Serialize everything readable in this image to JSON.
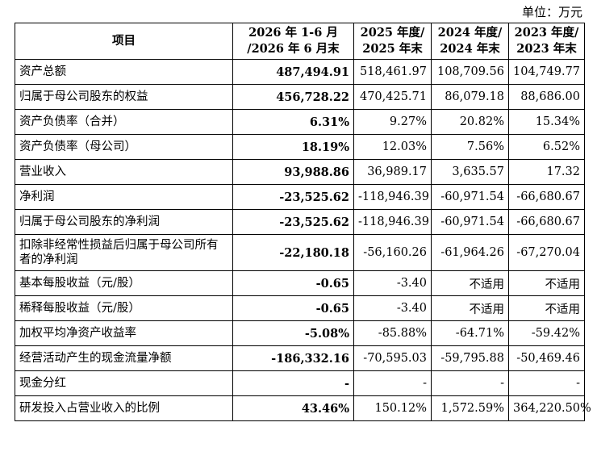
{
  "unit_label": "单位：万元",
  "headers": [
    "项目",
    "2026 年 1-6 月\n/2026 年 6 月末",
    "2025 年度/\n2025 年末",
    "2024 年度/\n2024 年末",
    "2023 年度/\n2023 年末"
  ],
  "rows": [
    {
      "label": "资产总额",
      "values": [
        "487,494.91",
        "518,461.97",
        "108,709.56",
        "104,749.77"
      ]
    },
    {
      "label": "归属于母公司股东的权益",
      "values": [
        "456,728.22",
        "470,425.71",
        "86,079.18",
        "88,686.00"
      ]
    },
    {
      "label": "资产负债率（合并）",
      "values": [
        "6.31%",
        "9.27%",
        "20.82%",
        "15.34%"
      ]
    },
    {
      "label": "资产负债率（母公司）",
      "values": [
        "18.19%",
        "12.03%",
        "7.56%",
        "6.52%"
      ]
    },
    {
      "label": "营业收入",
      "values": [
        "93,988.86",
        "36,989.17",
        "3,635.57",
        "17.32"
      ]
    },
    {
      "label": "净利润",
      "values": [
        "-23,525.62",
        "-118,946.39",
        "-60,971.54",
        "-66,680.67"
      ]
    },
    {
      "label": "归属于母公司股东的净利润",
      "values": [
        "-23,525.62",
        "-118,946.39",
        "-60,971.54",
        "-66,680.67"
      ]
    },
    {
      "label": "扣除非经常性损益后归属于母公司所有者的净利润",
      "values": [
        "-22,180.18",
        "-56,160.26",
        "-61,964.26",
        "-67,270.04"
      ],
      "tall": true
    },
    {
      "label": "基本每股收益（元/股）",
      "values": [
        "-0.65",
        "-3.40",
        "不适用",
        "不适用"
      ]
    },
    {
      "label": "稀释每股收益（元/股）",
      "values": [
        "-0.65",
        "-3.40",
        "不适用",
        "不适用"
      ]
    },
    {
      "label": "加权平均净资产收益率",
      "values": [
        "-5.08%",
        "-85.88%",
        "-64.71%",
        "-59.42%"
      ]
    },
    {
      "label": "经营活动产生的现金流量净额",
      "values": [
        "-186,332.16",
        "-70,595.03",
        "-59,795.88",
        "-50,469.46"
      ]
    },
    {
      "label": "现金分红",
      "values": [
        "-",
        "-",
        "-",
        "-"
      ]
    },
    {
      "label": "研发投入占营业收入的比例",
      "values": [
        "43.46%",
        "150.12%",
        "1,572.59%",
        "364,220.50%"
      ]
    }
  ]
}
